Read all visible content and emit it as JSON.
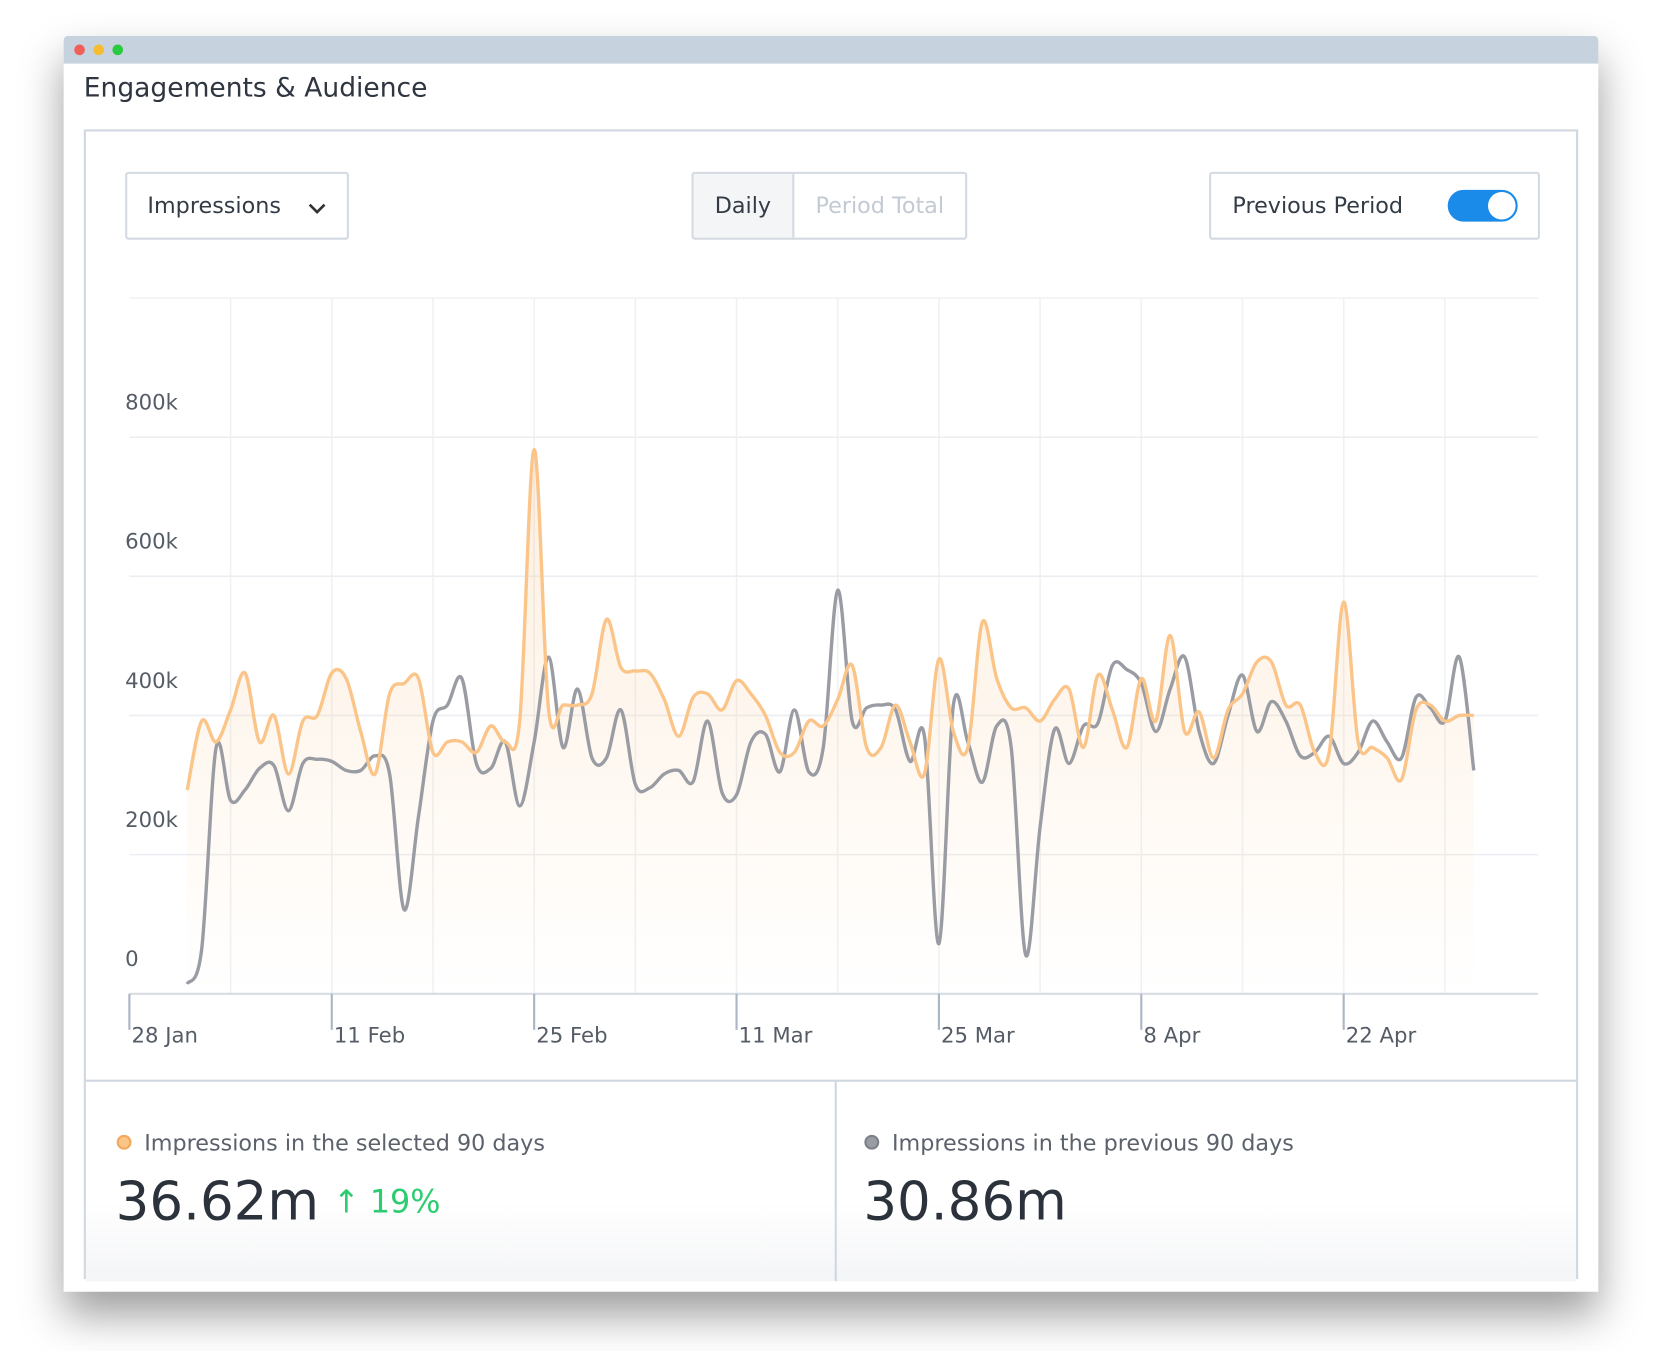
{
  "window": {
    "title": "Engagements & Audience"
  },
  "controls": {
    "metric": "Impressions",
    "tabs": [
      "Daily",
      "Period Total"
    ],
    "toggle": "Previous Period"
  },
  "chart_data": {
    "type": "line",
    "categories": [
      "28 Jan",
      null,
      null,
      null,
      null,
      null,
      null,
      null,
      null,
      null,
      null,
      null,
      null,
      null,
      "11 Feb",
      null,
      null,
      null,
      null,
      null,
      null,
      null,
      null,
      null,
      null,
      null,
      null,
      null,
      "25 Feb",
      null,
      null,
      null,
      null,
      null,
      null,
      null,
      null,
      null,
      null,
      null,
      null,
      null,
      "11 Mar",
      null,
      null,
      null,
      null,
      null,
      null,
      null,
      null,
      null,
      null,
      null,
      null,
      null,
      "25 Mar",
      null,
      null,
      null,
      null,
      null,
      null,
      null,
      null,
      null,
      null,
      null,
      null,
      null,
      "8 Apr",
      null,
      null,
      null,
      null,
      null,
      null,
      null,
      null,
      null,
      null,
      null,
      null,
      null,
      "22 Apr",
      null,
      null,
      null,
      null,
      null,
      null,
      null,
      null,
      null
    ],
    "series": [
      {
        "name": "Impressions in the selected 90 days",
        "color": "#fbc58a",
        "values": [
          null,
          null,
          null,
          null,
          293000,
          392000,
          362000,
          408000,
          461000,
          362000,
          400000,
          316000,
          392000,
          400000,
          461000,
          453000,
          377000,
          316000,
          431000,
          446000,
          453000,
          347000,
          362000,
          362000,
          347000,
          385000,
          362000,
          392000,
          782000,
          408000,
          415000,
          415000,
          431000,
          538000,
          469000,
          464000,
          461000,
          423000,
          370000,
          426000,
          431000,
          408000,
          450000,
          431000,
          400000,
          347000,
          347000,
          392000,
          385000,
          423000,
          472000,
          354000,
          354000,
          415000,
          362000,
          316000,
          481000,
          377000,
          354000,
          534000,
          453000,
          411000,
          411000,
          392000,
          423000,
          438000,
          354000,
          458000,
          408000,
          354000,
          453000,
          392000,
          515000,
          377000,
          405000,
          339000,
          408000,
          431000,
          477000,
          477000,
          415000,
          415000,
          347000,
          347000,
          563000,
          362000,
          354000,
          339000,
          308000,
          408000,
          415000,
          392000,
          400000,
          400000
        ]
      },
      {
        "name": "Impressions in the previous 90 days",
        "color": "#9a9ca3",
        "values": [
          null,
          null,
          null,
          null,
          14000,
          64000,
          354000,
          278000,
          293000,
          324000,
          328000,
          263000,
          331000,
          337000,
          334000,
          321000,
          321000,
          342000,
          316000,
          121000,
          255000,
          392000,
          415000,
          453000,
          331000,
          324000,
          362000,
          270000,
          362000,
          484000,
          354000,
          438000,
          339000,
          339000,
          408000,
          301000,
          296000,
          316000,
          321000,
          305000,
          392000,
          289000,
          286000,
          362000,
          373000,
          319000,
          408000,
          319000,
          354000,
          580000,
          392000,
          411000,
          415000,
          408000,
          334000,
          370000,
          72000,
          415000,
          362000,
          304000,
          385000,
          354000,
          56000,
          240000,
          380000,
          331000,
          385000,
          389000,
          472000,
          466000,
          446000,
          377000,
          438000,
          484000,
          377000,
          331000,
          400000,
          458000,
          377000,
          420000,
          392000,
          342000,
          347000,
          370000,
          331000,
          347000,
          392000,
          362000,
          339000,
          426000,
          411000,
          392000,
          484000,
          321000
        ]
      }
    ],
    "ylim": [
      0,
      1000000
    ],
    "yticks": [
      0,
      {
        "value": 200000,
        "label": "200k"
      },
      {
        "value": 400000,
        "label": "400k"
      },
      {
        "value": 600000,
        "label": "600k"
      },
      {
        "value": 800000,
        "label": "800k"
      }
    ],
    "grid": true
  },
  "summary": [
    {
      "total": "36.62m",
      "change": "19%"
    },
    {
      "total": "30.86m"
    }
  ]
}
